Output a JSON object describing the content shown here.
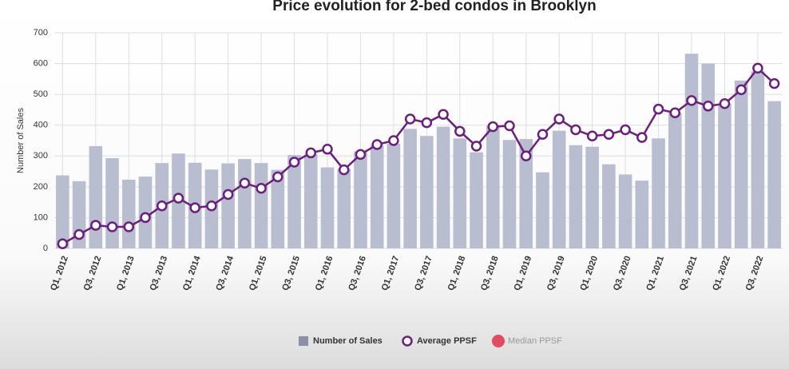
{
  "chart_data": {
    "type": "bar_line",
    "title": "Price evolution for 2-bed condos in Brooklyn",
    "y_label": "Number of Sales",
    "categories": [
      "Q1, 2012",
      null,
      "Q3, 2012",
      null,
      "Q1, 2013",
      null,
      "Q3, 2013",
      null,
      "Q1, 2014",
      null,
      "Q3, 2014",
      null,
      "Q1, 2015",
      null,
      "Q3, 2015",
      null,
      "Q1, 2016",
      null,
      "Q3, 2016",
      null,
      "Q1, 2017",
      null,
      "Q3, 2017",
      null,
      "Q1, 2018",
      null,
      "Q3, 2018",
      null,
      "Q1, 2019",
      null,
      "Q3, 2019",
      null,
      "Q1, 2020",
      null,
      "Q3, 2020",
      null,
      "Q1, 2021",
      null,
      "Q3, 2021",
      null,
      "Q1, 2022",
      null,
      "Q3, 2022",
      null
    ],
    "series": [
      {
        "name": "Number of Sales",
        "kind": "bar",
        "color": "#b9bdd0",
        "legend_color": "#8b90a8",
        "values": [
          237,
          218,
          332,
          293,
          223,
          233,
          277,
          308,
          278,
          256,
          276,
          290,
          277,
          255,
          303,
          305,
          263,
          258,
          315,
          335,
          340,
          388,
          365,
          395,
          357,
          312,
          398,
          352,
          355,
          247,
          382,
          335,
          330,
          273,
          240,
          220,
          357,
          440,
          632,
          600,
          470,
          545,
          575,
          478
        ]
      },
      {
        "name": "Average PPSF",
        "kind": "line",
        "color": "#6b1f7c",
        "values": [
          15,
          45,
          75,
          70,
          70,
          100,
          138,
          163,
          132,
          138,
          175,
          212,
          195,
          232,
          280,
          310,
          322,
          255,
          305,
          337,
          350,
          420,
          408,
          435,
          380,
          332,
          395,
          398,
          300,
          370,
          420,
          385,
          365,
          370,
          385,
          360,
          452,
          440,
          480,
          462,
          470,
          515,
          585,
          535
        ]
      },
      {
        "name": "Median PPSF",
        "kind": "hidden",
        "color": "#e0304a"
      }
    ],
    "ylim": [
      0,
      700
    ],
    "yticks": [
      0,
      100,
      200,
      300,
      400,
      500,
      600,
      700
    ],
    "grid": true
  }
}
